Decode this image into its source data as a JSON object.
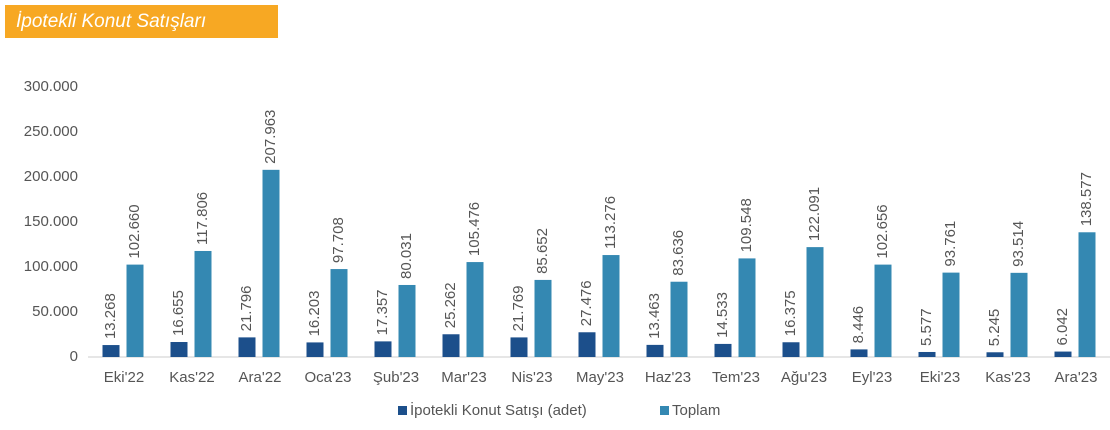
{
  "chart_data": {
    "type": "bar",
    "title": "İpotekli Konut Satışları",
    "categories": [
      "Eki'22",
      "Kas'22",
      "Ara'22",
      "Oca'23",
      "Şub'23",
      "Mar'23",
      "Nis'23",
      "May'23",
      "Haz'23",
      "Tem'23",
      "Ağu'23",
      "Eyl'23",
      "Eki'23",
      "Kas'23",
      "Ara'23"
    ],
    "series": [
      {
        "name": "İpotekli Konut Satışı (adet)",
        "color": "#1c4f8b",
        "values": [
          13268,
          16655,
          21796,
          16203,
          17357,
          25262,
          21769,
          27476,
          13463,
          14533,
          16375,
          8446,
          5577,
          5245,
          6042
        ],
        "value_labels": [
          "13.268",
          "16.655",
          "21.796",
          "16.203",
          "17.357",
          "25.262",
          "21.769",
          "27.476",
          "13.463",
          "14.533",
          "16.375",
          "8.446",
          "5.577",
          "5.245",
          "6.042"
        ]
      },
      {
        "name": "Toplam",
        "color": "#3488b2",
        "values": [
          102660,
          117806,
          207963,
          97708,
          80031,
          105476,
          85652,
          113276,
          83636,
          109548,
          122091,
          102656,
          93761,
          93514,
          138577
        ],
        "value_labels": [
          "102.660",
          "117.806",
          "207.963",
          "97.708",
          "80.031",
          "105.476",
          "85.652",
          "113.276",
          "83.636",
          "109.548",
          "122.091",
          "102.656",
          "93.761",
          "93.514",
          "138.577"
        ]
      }
    ],
    "ylim": [
      0,
      300000
    ],
    "yticks": [
      0,
      {
        "value": 50000,
        "label": "50.000"
      },
      {
        "value": 100000,
        "label": "100.000"
      },
      {
        "value": 150000,
        "label": "150.000"
      },
      {
        "value": 200000,
        "label": "200.000"
      },
      {
        "value": 250000,
        "label": "250.000"
      },
      {
        "value": 300000,
        "label": "300.000"
      }
    ],
    "grid": false,
    "legend": "bottom"
  }
}
